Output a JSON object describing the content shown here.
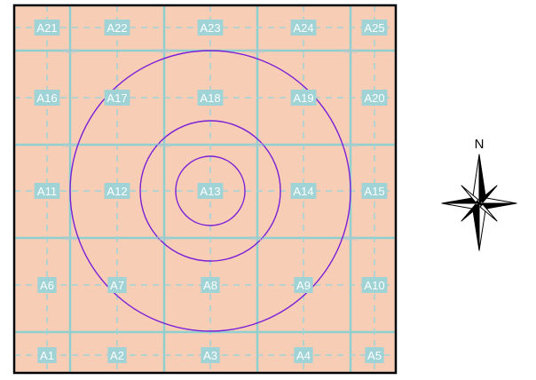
{
  "colors": {
    "background": "#ffffff",
    "map_fill": "#f8cdb6",
    "border": "#000000",
    "grid_solid": "#8fcfcf",
    "grid_dashed": "#9fd3d6",
    "label_bg": "#9fd3d6",
    "label_text": "#ffffff",
    "ring": "#7b1fd6",
    "compass": "#000000"
  },
  "grid": {
    "rows": [
      [
        "A21",
        "A22",
        "A23",
        "A24",
        "A25"
      ],
      [
        "A16",
        "A17",
        "A18",
        "A19",
        "A20"
      ],
      [
        "A11",
        "A12",
        "A13",
        "A14",
        "A15"
      ],
      [
        "A6",
        "A7",
        "A8",
        "A9",
        "A10"
      ],
      [
        "A1",
        "A2",
        "A3",
        "A4",
        "A5"
      ]
    ]
  },
  "rings": {
    "count": 3,
    "center_cell": "A13"
  },
  "small_marks": [
    "NEW",
    "NEW",
    "NEW",
    "NEW",
    "NEW",
    "NEW",
    "NEW",
    "NEW",
    "NEW",
    "NEW",
    "NEW",
    "NEW"
  ],
  "compass": {
    "north_label": "N",
    "icon": "compass-rose-icon"
  }
}
